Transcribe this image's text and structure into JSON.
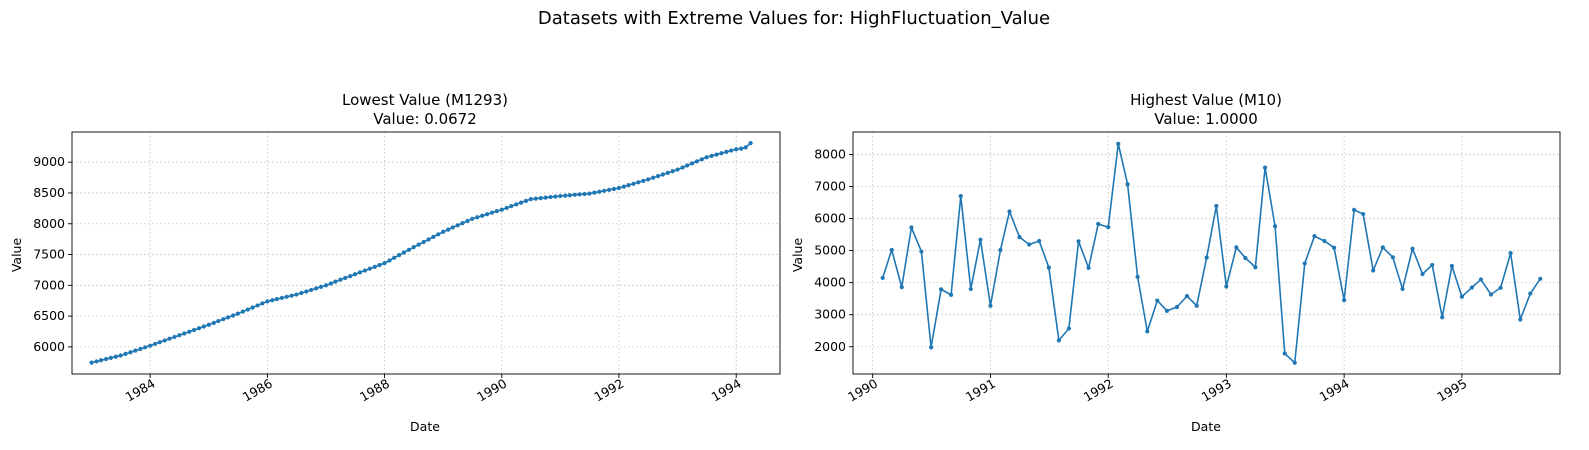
{
  "suptitle": "Datasets with Extreme Values for: HighFluctuation_Value",
  "colors": {
    "line": "#1f77b4",
    "grid": "#b0b0b0",
    "axis": "#000000"
  },
  "chart_data": [
    {
      "type": "line",
      "title": "Lowest Value (M1293)",
      "subtitle": "Value: 0.0672",
      "xlabel": "Date",
      "ylabel": "Value",
      "marker": "dot",
      "grid": true,
      "x_kind": "date",
      "xlim": [
        "1982-09-01",
        "1994-10-01"
      ],
      "ylim": [
        5560,
        9490
      ],
      "xticks": [
        "1984-01-01",
        "1986-01-01",
        "1988-01-01",
        "1990-01-01",
        "1992-01-01",
        "1994-01-01"
      ],
      "xtick_labels": [
        "1984",
        "1986",
        "1988",
        "1990",
        "1992",
        "1994"
      ],
      "yticks": [
        6000,
        6500,
        7000,
        7500,
        8000,
        8500,
        9000
      ],
      "ytick_labels": [
        "6000",
        "6500",
        "7000",
        "7500",
        "8000",
        "8500",
        "9000"
      ],
      "anchors": [
        [
          "1983-01-01",
          5745
        ],
        [
          "1983-07-01",
          5860
        ],
        [
          "1984-01-01",
          6020
        ],
        [
          "1984-07-01",
          6190
        ],
        [
          "1985-01-01",
          6360
        ],
        [
          "1985-07-01",
          6540
        ],
        [
          "1986-01-01",
          6740
        ],
        [
          "1986-07-01",
          6850
        ],
        [
          "1987-01-01",
          7000
        ],
        [
          "1987-07-01",
          7180
        ],
        [
          "1988-01-01",
          7360
        ],
        [
          "1988-07-01",
          7620
        ],
        [
          "1989-01-01",
          7870
        ],
        [
          "1989-07-01",
          8080
        ],
        [
          "1990-01-01",
          8230
        ],
        [
          "1990-07-01",
          8400
        ],
        [
          "1991-01-01",
          8450
        ],
        [
          "1991-07-01",
          8490
        ],
        [
          "1992-01-01",
          8580
        ],
        [
          "1992-07-01",
          8720
        ],
        [
          "1993-01-01",
          8880
        ],
        [
          "1993-07-01",
          9080
        ],
        [
          "1994-01-01",
          9210
        ],
        [
          "1994-02-01",
          9220
        ],
        [
          "1994-03-01",
          9240
        ],
        [
          "1994-04-01",
          9310
        ]
      ]
    },
    {
      "type": "line",
      "title": "Highest Value (M10)",
      "subtitle": "Value: 1.0000",
      "xlabel": "Date",
      "ylabel": "Value",
      "marker": "dot",
      "grid": true,
      "x_kind": "date",
      "xlim": [
        "1989-11-01",
        "1995-11-01"
      ],
      "ylim": [
        1150,
        8700
      ],
      "xticks": [
        "1990-01-01",
        "1991-01-01",
        "1992-01-01",
        "1993-01-01",
        "1994-01-01",
        "1995-01-01"
      ],
      "xtick_labels": [
        "1990",
        "1991",
        "1992",
        "1993",
        "1994",
        "1995"
      ],
      "yticks": [
        2000,
        3000,
        4000,
        5000,
        6000,
        7000,
        8000
      ],
      "ytick_labels": [
        "2000",
        "3000",
        "4000",
        "5000",
        "6000",
        "7000",
        "8000"
      ],
      "points": [
        [
          "1990-02-01",
          4150
        ],
        [
          "1990-03-01",
          5020
        ],
        [
          "1990-04-01",
          3860
        ],
        [
          "1990-05-01",
          5720
        ],
        [
          "1990-06-01",
          4970
        ],
        [
          "1990-07-01",
          1980
        ],
        [
          "1990-08-01",
          3790
        ],
        [
          "1990-09-01",
          3620
        ],
        [
          "1990-10-01",
          6700
        ],
        [
          "1990-11-01",
          3800
        ],
        [
          "1990-12-01",
          5340
        ],
        [
          "1991-01-01",
          3280
        ],
        [
          "1991-02-01",
          5020
        ],
        [
          "1991-03-01",
          6220
        ],
        [
          "1991-04-01",
          5420
        ],
        [
          "1991-05-01",
          5190
        ],
        [
          "1991-06-01",
          5300
        ],
        [
          "1991-07-01",
          4470
        ],
        [
          "1991-08-01",
          2200
        ],
        [
          "1991-09-01",
          2570
        ],
        [
          "1991-10-01",
          5290
        ],
        [
          "1991-11-01",
          4460
        ],
        [
          "1991-12-01",
          5830
        ],
        [
          "1992-01-01",
          5730
        ],
        [
          "1992-02-01",
          8330
        ],
        [
          "1992-03-01",
          7070
        ],
        [
          "1992-04-01",
          4180
        ],
        [
          "1992-05-01",
          2480
        ],
        [
          "1992-06-01",
          3440
        ],
        [
          "1992-07-01",
          3120
        ],
        [
          "1992-08-01",
          3240
        ],
        [
          "1992-09-01",
          3580
        ],
        [
          "1992-10-01",
          3280
        ],
        [
          "1992-11-01",
          4780
        ],
        [
          "1992-12-01",
          6390
        ],
        [
          "1993-01-01",
          3880
        ],
        [
          "1993-02-01",
          5100
        ],
        [
          "1993-03-01",
          4770
        ],
        [
          "1993-04-01",
          4480
        ],
        [
          "1993-05-01",
          7590
        ],
        [
          "1993-06-01",
          5760
        ],
        [
          "1993-07-01",
          1790
        ],
        [
          "1993-08-01",
          1500
        ],
        [
          "1993-09-01",
          4600
        ],
        [
          "1993-10-01",
          5450
        ],
        [
          "1993-11-01",
          5300
        ],
        [
          "1993-12-01",
          5090
        ],
        [
          "1994-01-01",
          3450
        ],
        [
          "1994-02-01",
          6270
        ],
        [
          "1994-03-01",
          6140
        ],
        [
          "1994-04-01",
          4380
        ],
        [
          "1994-05-01",
          5100
        ],
        [
          "1994-06-01",
          4790
        ],
        [
          "1994-07-01",
          3800
        ],
        [
          "1994-08-01",
          5060
        ],
        [
          "1994-09-01",
          4270
        ],
        [
          "1994-10-01",
          4550
        ],
        [
          "1994-11-01",
          2920
        ],
        [
          "1994-12-01",
          4520
        ],
        [
          "1995-01-01",
          3560
        ],
        [
          "1995-02-01",
          3850
        ],
        [
          "1995-03-01",
          4100
        ],
        [
          "1995-04-01",
          3630
        ],
        [
          "1995-05-01",
          3840
        ],
        [
          "1995-06-01",
          4920
        ],
        [
          "1995-07-01",
          2850
        ],
        [
          "1995-08-01",
          3660
        ],
        [
          "1995-09-01",
          4120
        ]
      ]
    }
  ]
}
